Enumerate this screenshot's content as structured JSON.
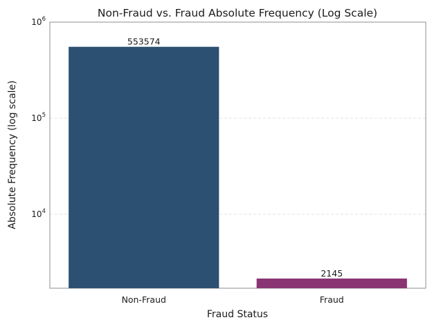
{
  "chart_data": {
    "type": "bar",
    "title": "Non-Fraud vs. Fraud Absolute Frequency (Log Scale)",
    "xlabel": "Fraud Status",
    "ylabel": "Absolute Frequency (log scale)",
    "yscale": "log",
    "ylim": [
      1700,
      1000000
    ],
    "grid": "y-dashed",
    "categories": [
      "Non-Fraud",
      "Fraud"
    ],
    "values": [
      553574,
      2145
    ],
    "bar_colors": [
      "#2c5071",
      "#8a3573"
    ],
    "data_labels": [
      "553574",
      "2145"
    ],
    "y_ticks": [
      {
        "value": 10000,
        "base": "10",
        "exp": "4"
      },
      {
        "value": 100000,
        "base": "10",
        "exp": "5"
      },
      {
        "value": 1000000,
        "base": "10",
        "exp": "6"
      }
    ]
  }
}
